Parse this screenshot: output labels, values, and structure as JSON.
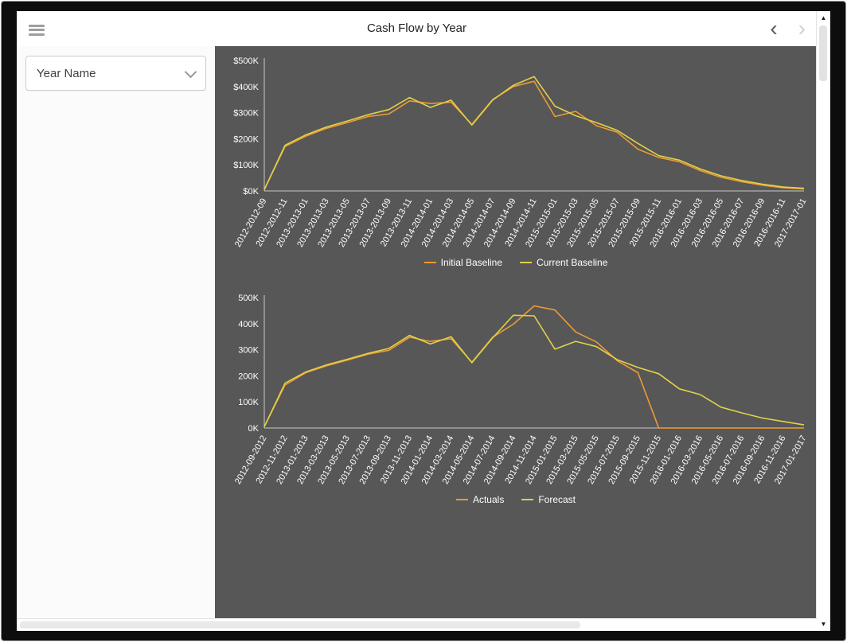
{
  "header": {
    "title": "Cash Flow by Year"
  },
  "icons": {
    "chevron_left": "‹",
    "chevron_right": "›",
    "scroll_up": "▲",
    "scroll_down": "▼"
  },
  "sidebar": {
    "year_filter_label": "Year Name"
  },
  "colors": {
    "plot_background": "#575757",
    "axis_text": "#ffffff",
    "axis_line": "#c9c9c9"
  },
  "chart_data": [
    {
      "type": "line",
      "title": "",
      "xlabel": "",
      "ylabel": "",
      "grid": false,
      "legend_position": "bottom",
      "ylim": [
        0,
        500
      ],
      "ytick_labels": [
        "$0K",
        "$100K",
        "$200K",
        "$300K",
        "$400K",
        "$500K"
      ],
      "categories": [
        "2012-2012-09",
        "2012-2012-11",
        "2013-2013-01",
        "2013-2013-03",
        "2013-2013-05",
        "2013-2013-07",
        "2013-2013-09",
        "2013-2013-11",
        "2014-2014-01",
        "2014-2014-03",
        "2014-2014-05",
        "2014-2014-07",
        "2014-2014-09",
        "2014-2014-11",
        "2015-2015-01",
        "2015-2015-03",
        "2015-2015-05",
        "2015-2015-07",
        "2015-2015-09",
        "2015-2015-11",
        "2016-2016-01",
        "2016-2016-03",
        "2016-2016-05",
        "2016-2016-07",
        "2016-2016-09",
        "2016-2016-11",
        "2017-2017-01"
      ],
      "series": [
        {
          "name": "Initial Baseline",
          "color": "#ED9B33",
          "values": [
            5,
            170,
            210,
            240,
            262,
            285,
            295,
            345,
            335,
            340,
            255,
            350,
            400,
            420,
            285,
            305,
            250,
            225,
            160,
            128,
            112,
            78,
            52,
            35,
            22,
            12,
            8
          ]
        },
        {
          "name": "Current Baseline",
          "color": "#DFD24A",
          "values": [
            5,
            175,
            215,
            245,
            268,
            292,
            312,
            358,
            320,
            348,
            252,
            348,
            405,
            438,
            325,
            288,
            262,
            232,
            182,
            135,
            118,
            84,
            58,
            40,
            26,
            15,
            10
          ]
        }
      ]
    },
    {
      "type": "line",
      "title": "",
      "xlabel": "",
      "ylabel": "",
      "grid": false,
      "legend_position": "bottom",
      "ylim": [
        0,
        500
      ],
      "ytick_labels": [
        "0K",
        "100K",
        "200K",
        "300K",
        "400K",
        "500K"
      ],
      "categories": [
        "2012-09-2012",
        "2012-11-2012",
        "2013-01-2013",
        "2013-03-2013",
        "2013-05-2013",
        "2013-07-2013",
        "2013-09-2013",
        "2013-11-2013",
        "2014-01-2014",
        "2014-03-2014",
        "2014-05-2014",
        "2014-07-2014",
        "2014-09-2014",
        "2014-11-2014",
        "2015-01-2015",
        "2015-03-2015",
        "2015-05-2015",
        "2015-07-2015",
        "2015-09-2015",
        "2015-11-2015",
        "2016-01-2016",
        "2016-03-2016",
        "2016-05-2016",
        "2016-07-2016",
        "2016-09-2016",
        "2016-11-2016",
        "2017-01-2017"
      ],
      "series": [
        {
          "name": "Actuals",
          "color": "#ED9B33",
          "values": [
            5,
            165,
            212,
            238,
            260,
            283,
            298,
            348,
            332,
            342,
            252,
            348,
            398,
            468,
            452,
            368,
            330,
            258,
            212,
            0,
            0,
            0,
            0,
            0,
            0,
            0,
            0
          ]
        },
        {
          "name": "Forecast",
          "color": "#DFD24A",
          "values": [
            5,
            172,
            215,
            242,
            263,
            286,
            305,
            355,
            322,
            350,
            250,
            345,
            432,
            430,
            302,
            332,
            312,
            262,
            232,
            208,
            150,
            128,
            80,
            58,
            38,
            25,
            12
          ]
        }
      ]
    }
  ]
}
